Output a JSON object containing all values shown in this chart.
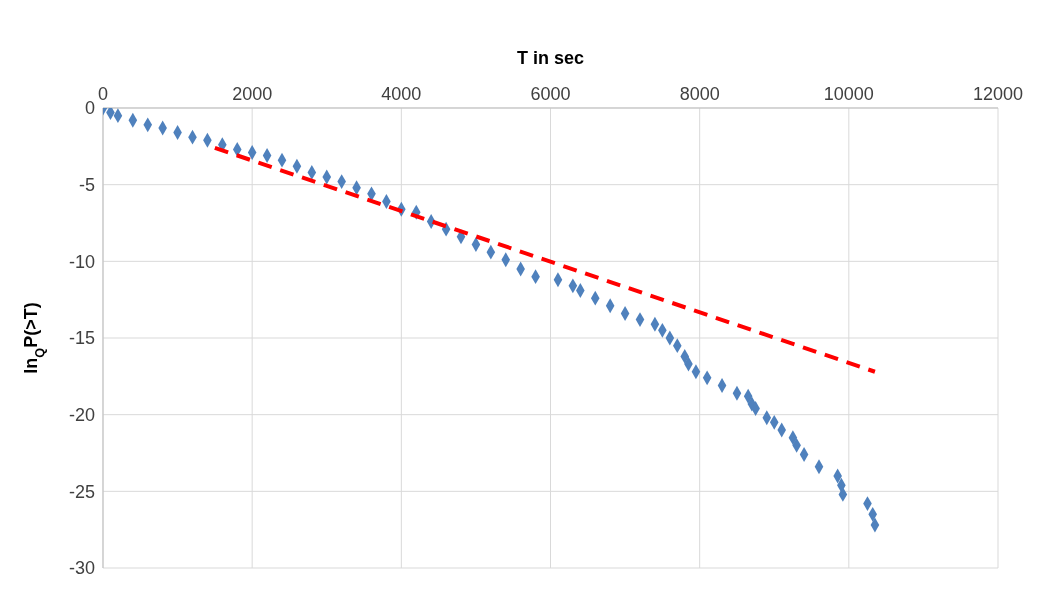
{
  "chart_data": {
    "type": "scatter",
    "xlabel": "T in sec",
    "ylabel": "ln$_{Q}$P(>T)",
    "xlim": [
      0,
      12000
    ],
    "xticks": [
      0,
      2000,
      4000,
      6000,
      8000,
      10000,
      12000
    ],
    "ylim": [
      -30,
      0
    ],
    "yticks": [
      -30,
      -25,
      -20,
      -15,
      -10,
      -5,
      0
    ],
    "grid": true,
    "legend": false,
    "series": [
      {
        "type": "scatter",
        "color": "#4f81bd",
        "marker": "diamond",
        "x": [
          0,
          100,
          200,
          400,
          600,
          800,
          1000,
          1200,
          1400,
          1600,
          1800,
          2000,
          2200,
          2400,
          2600,
          2800,
          3000,
          3200,
          3400,
          3600,
          3800,
          4000,
          4200,
          4400,
          4600,
          4800,
          5000,
          5200,
          5400,
          5600,
          5800,
          6100,
          6300,
          6400,
          6600,
          6800,
          7000,
          7200,
          7400,
          7500,
          7600,
          7700,
          7800,
          7850,
          7950,
          8100,
          8300,
          8500,
          8650,
          8700,
          8750,
          8900,
          9000,
          9100,
          9250,
          9300,
          9400,
          9600,
          9850,
          9900,
          9920,
          10250,
          10320,
          10350
        ],
        "values": [
          0,
          -0.3,
          -0.5,
          -0.8,
          -1.1,
          -1.3,
          -1.6,
          -1.9,
          -2.1,
          -2.4,
          -2.7,
          -2.9,
          -3.1,
          -3.4,
          -3.8,
          -4.2,
          -4.5,
          -4.8,
          -5.2,
          -5.6,
          -6.1,
          -6.6,
          -6.8,
          -7.4,
          -7.9,
          -8.4,
          -8.9,
          -9.4,
          -9.9,
          -10.5,
          -11.0,
          -11.2,
          -11.6,
          -11.9,
          -12.4,
          -12.9,
          -13.4,
          -13.8,
          -14.1,
          -14.5,
          -15.0,
          -15.5,
          -16.2,
          -16.7,
          -17.2,
          -17.6,
          -18.1,
          -18.6,
          -18.8,
          -19.3,
          -19.6,
          -20.2,
          -20.5,
          -21.0,
          -21.5,
          -22.0,
          -22.6,
          -23.4,
          -24.0,
          -24.6,
          -25.2,
          -25.8,
          -26.5,
          -27.2
        ]
      },
      {
        "type": "line",
        "color": "#ff0000",
        "line_style": "dashed",
        "marker": "none",
        "x": [
          1500,
          10350
        ],
        "values": [
          -2.6,
          -17.2
        ]
      }
    ]
  }
}
